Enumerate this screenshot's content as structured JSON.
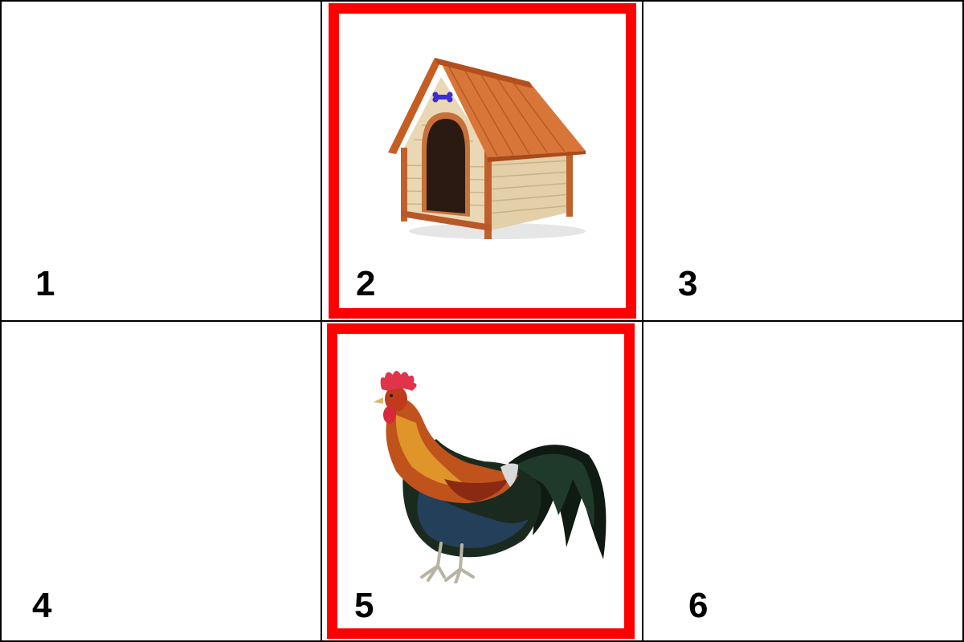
{
  "cells": [
    {
      "number": "1",
      "image": null,
      "selected": false
    },
    {
      "number": "2",
      "image": "dog-house",
      "selected": true
    },
    {
      "number": "3",
      "image": null,
      "selected": false
    },
    {
      "number": "4",
      "image": null,
      "selected": false
    },
    {
      "number": "5",
      "image": "rooster",
      "selected": true
    },
    {
      "number": "6",
      "image": null,
      "selected": false
    }
  ],
  "colors": {
    "grid_line": "#000000",
    "selection_frame": "#ff0000",
    "background": "#ffffff"
  }
}
